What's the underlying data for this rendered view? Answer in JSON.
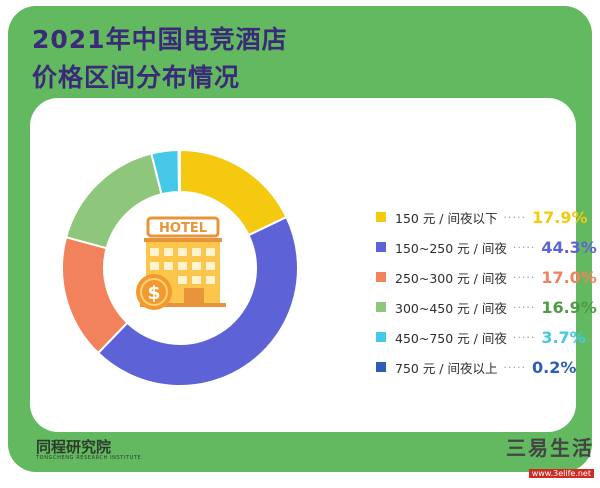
{
  "header": {
    "title_line1": "2021年中国电竞酒店",
    "title_line2": "价格区间分布情况"
  },
  "hotel_sign": "HOTEL",
  "brand": {
    "name": "同程研究院",
    "sub": "TONGCHENG RESEARCH INSTITUTE"
  },
  "watermark": {
    "main": "三易生活",
    "url": "www.3elife.net"
  },
  "colors": {
    "frame": "#62b95f",
    "title": "#3a2a78"
  },
  "chart_data": {
    "type": "pie",
    "title": "",
    "slices": [
      {
        "label": "150 元 / 间夜以下",
        "value": 17.9,
        "display": "17.9%",
        "color": "#f5c90f"
      },
      {
        "label": "150~250 元 / 间夜",
        "value": 44.3,
        "display": "44.3%",
        "color": "#5d63d6"
      },
      {
        "label": "250~300 元 / 间夜",
        "value": 17.0,
        "display": "17.0%",
        "color": "#f2825b"
      },
      {
        "label": "300~450 元 / 间夜",
        "value": 16.9,
        "display": "16.9%",
        "color": "#8ec77b"
      },
      {
        "label": "450~750 元 / 间夜",
        "value": 3.7,
        "display": "3.7%",
        "color": "#46c8e8"
      },
      {
        "label": "750 元 / 间夜以上",
        "value": 0.2,
        "display": "0.2%",
        "color": "#2c5fb3"
      }
    ],
    "legend_position": "right"
  }
}
